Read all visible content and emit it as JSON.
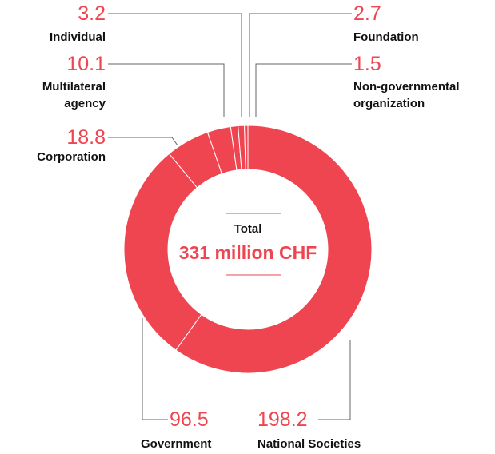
{
  "chart_data": {
    "type": "donut",
    "categories": [
      "National Societies",
      "Government",
      "Corporation",
      "Multilateral agency",
      "Individual",
      "Foundation",
      "Non-governmental organization"
    ],
    "values": [
      198.2,
      96.5,
      18.8,
      10.1,
      3.2,
      2.7,
      1.5
    ],
    "color": "#ef4550",
    "center_label": "Total",
    "center_value": "331 million CHF"
  }
}
